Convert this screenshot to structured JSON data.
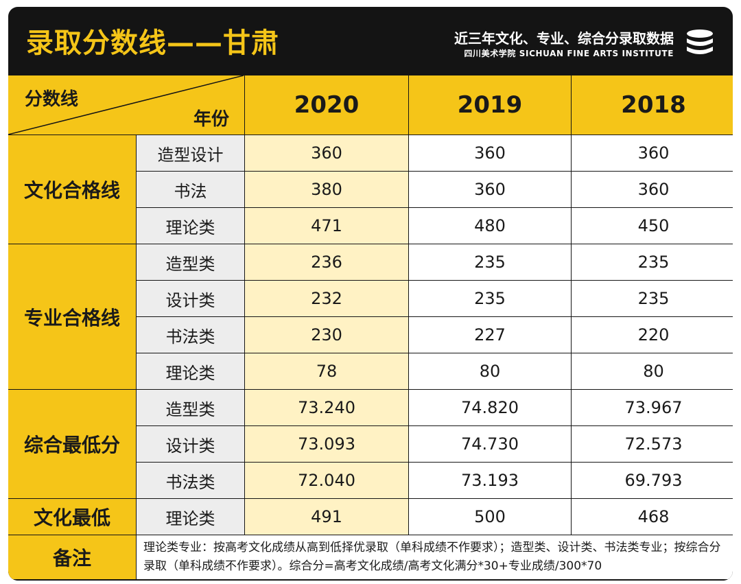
{
  "header": {
    "title": "录取分数线——甘肃",
    "subtitle": "近三年文化、专业、综合分录取数据",
    "institute": "四川美术学院 SICHUAN FINE ARTS INSTITUTE",
    "logo_icon": "stacked-discs-icon"
  },
  "table": {
    "corner_top": "分数线",
    "corner_bottom": "年份",
    "years": [
      "2020",
      "2019",
      "2018"
    ],
    "groups": [
      {
        "label": "文化合格线",
        "rows": [
          {
            "label": "造型设计",
            "values": [
              "360",
              "360",
              "360"
            ]
          },
          {
            "label": "书法",
            "values": [
              "380",
              "360",
              "360"
            ]
          },
          {
            "label": "理论类",
            "values": [
              "471",
              "480",
              "450"
            ]
          }
        ]
      },
      {
        "label": "专业合格线",
        "rows": [
          {
            "label": "造型类",
            "values": [
              "236",
              "235",
              "235"
            ]
          },
          {
            "label": "设计类",
            "values": [
              "232",
              "235",
              "235"
            ]
          },
          {
            "label": "书法类",
            "values": [
              "230",
              "227",
              "220"
            ]
          },
          {
            "label": "理论类",
            "values": [
              "78",
              "80",
              "80"
            ]
          }
        ]
      },
      {
        "label": "综合最低分",
        "rows": [
          {
            "label": "造型类",
            "values": [
              "73.240",
              "74.820",
              "73.967"
            ]
          },
          {
            "label": "设计类",
            "values": [
              "73.093",
              "74.730",
              "72.573"
            ]
          },
          {
            "label": "书法类",
            "values": [
              "72.040",
              "73.193",
              "69.793"
            ]
          }
        ]
      },
      {
        "label": "文化最低",
        "rows": [
          {
            "label": "理论类",
            "values": [
              "491",
              "500",
              "468"
            ]
          }
        ]
      }
    ],
    "note_label": "备注",
    "note": "理论类专业：按高考文化成绩从高到低择优录取（单科成绩不作要求）；造型类、设计类、书法类专业；按综合分录取（单科成绩不作要求）。综合分=高考文化成绩/高考文化满分*30+专业成绩/300*70"
  },
  "colors": {
    "brand_yellow": "#f5c518",
    "highlight_pale": "#fff2c4",
    "label_gray": "#ededed",
    "frame_black": "#141414"
  }
}
